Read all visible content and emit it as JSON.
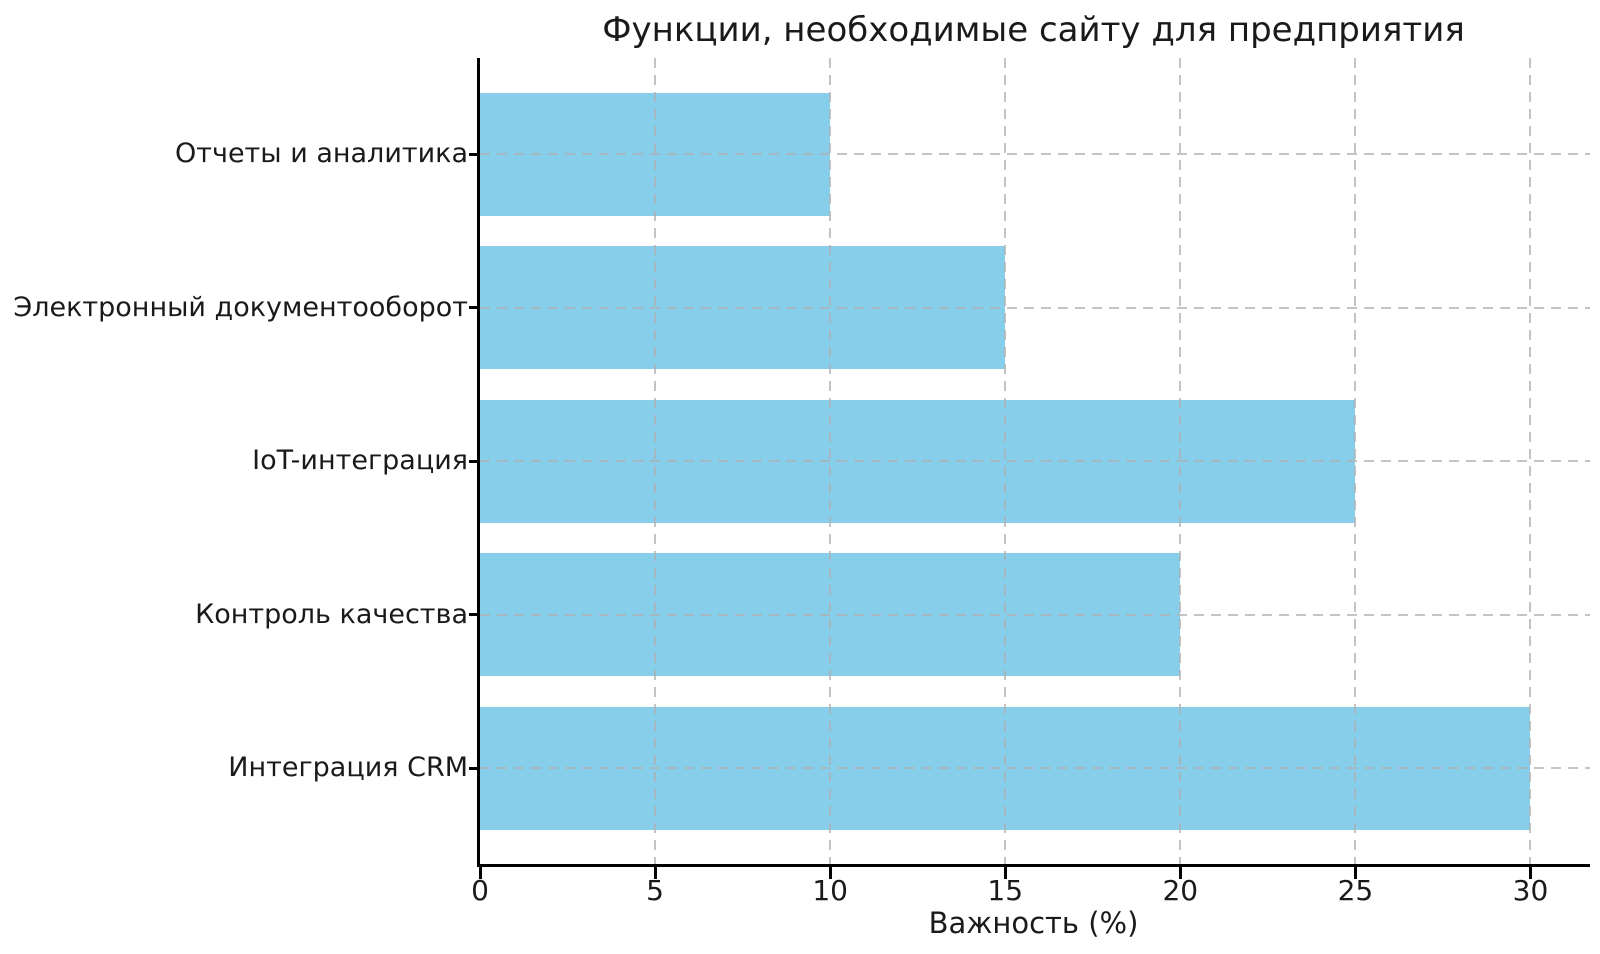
{
  "figure": {
    "background": "#ffffff",
    "text_color": "#1a1a1a",
    "axis_color": "#000000",
    "grid_color": "#b0b0b0"
  },
  "chart_data": {
    "type": "bar",
    "orientation": "horizontal",
    "title": "Функции, необходимые сайту для предприятия",
    "xlabel": "Важность (%)",
    "ylabel": "",
    "categories": [
      "Отчеты и аналитика",
      "Электронный документооборот",
      "IoT-интеграция",
      "Контроль качества",
      "Интеграция CRM"
    ],
    "values": [
      10,
      15,
      25,
      20,
      30
    ],
    "bar_color": "#87CEEB",
    "x_ticks": [
      0,
      5,
      10,
      15,
      20,
      25,
      30
    ],
    "xlim": [
      0,
      31.7
    ],
    "grid": true,
    "grid_style": "dashed",
    "grid_above_bars": true,
    "legend": null
  }
}
